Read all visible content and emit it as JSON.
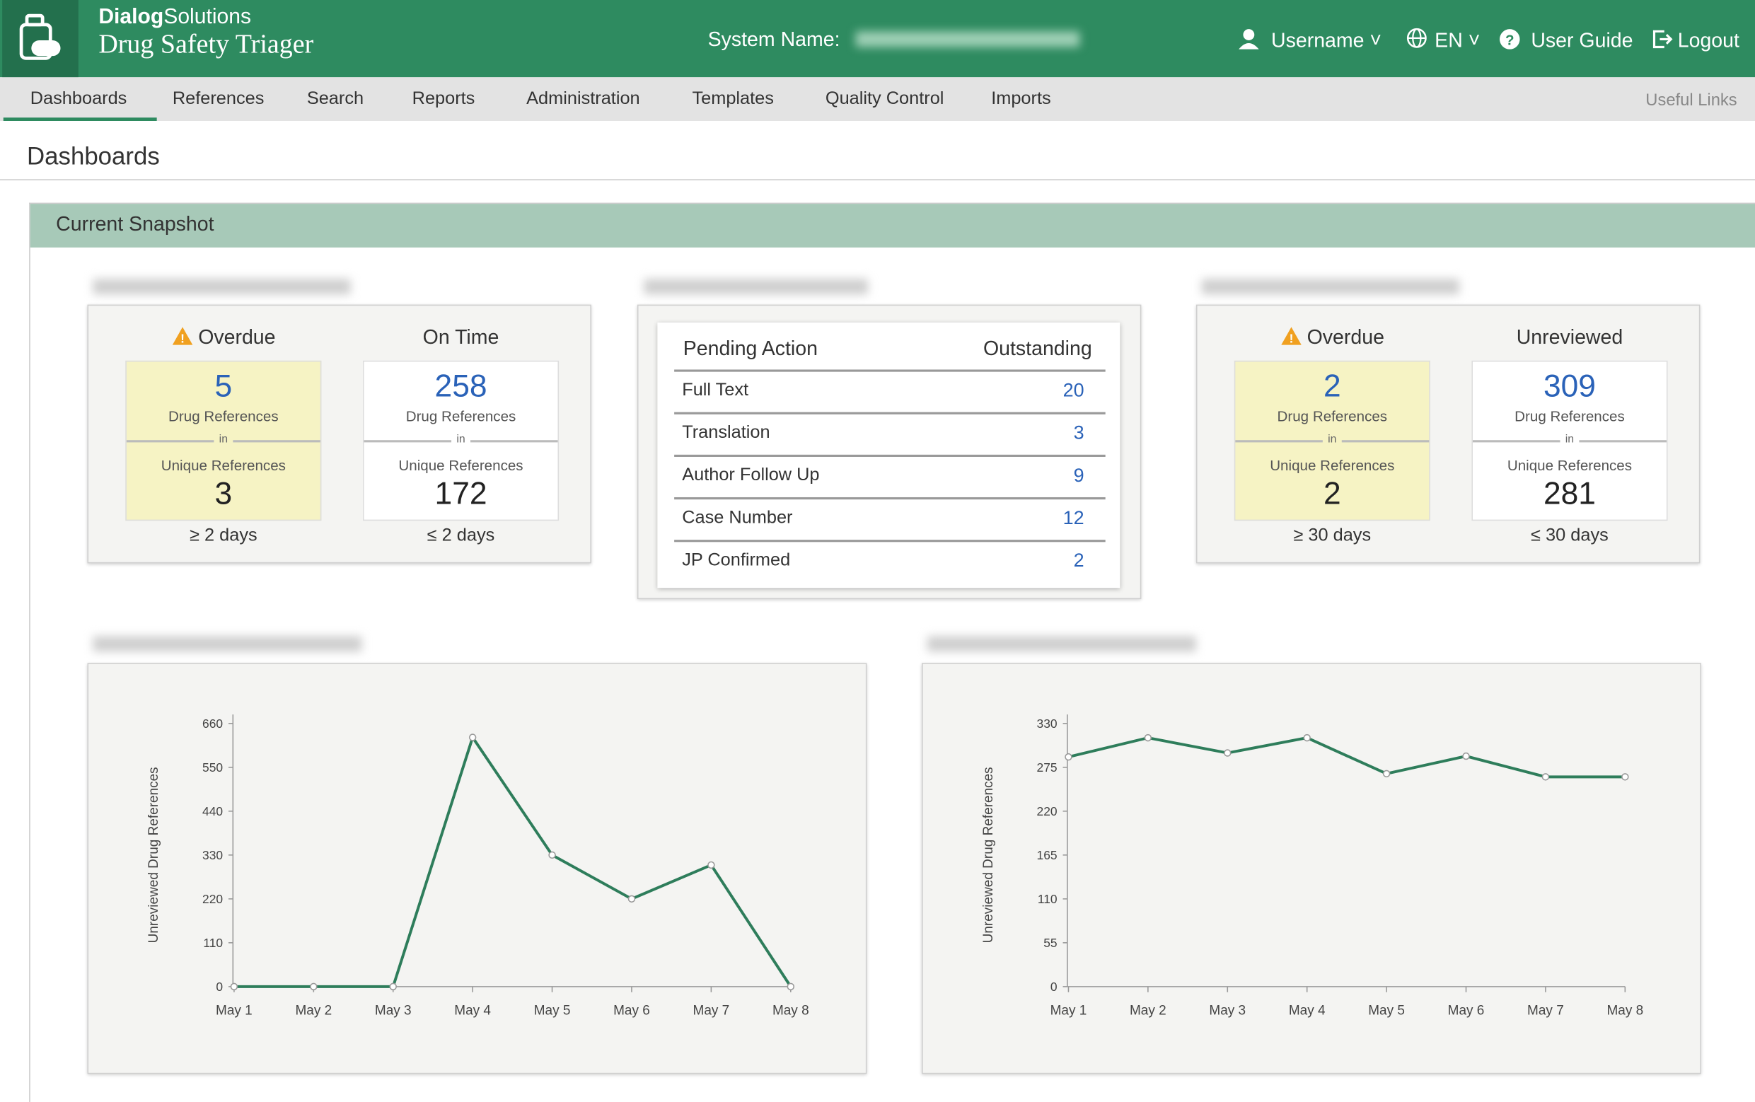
{
  "header": {
    "brand_bold": "Dialog",
    "brand_light": "Solutions",
    "app_title": "Drug Safety Triager",
    "system_name_label": "System Name:",
    "username": "Username",
    "language": "EN",
    "user_guide": "User Guide",
    "logout": "Logout"
  },
  "nav": {
    "tabs": [
      "Dashboards",
      "References",
      "Search",
      "Reports",
      "Administration",
      "Templates",
      "Quality Control",
      "Imports"
    ],
    "active": 0,
    "useful_links": "Useful Links"
  },
  "page_title": "Dashboards",
  "section_title": "Current Snapshot",
  "snapshot_left": {
    "columns": [
      {
        "heading": "Overdue",
        "highlight": true,
        "drug_references": 5,
        "drug_references_label": "Drug References",
        "in_label": "in",
        "unique_references_label": "Unique References",
        "unique_references": 3,
        "footer": "≥ 2 days"
      },
      {
        "heading": "On Time",
        "highlight": false,
        "drug_references": 258,
        "drug_references_label": "Drug References",
        "in_label": "in",
        "unique_references_label": "Unique References",
        "unique_references": 172,
        "footer": "≤ 2 days"
      }
    ]
  },
  "pending_table": {
    "header": [
      "Pending Action",
      "Outstanding"
    ],
    "rows": [
      [
        "Full Text",
        20
      ],
      [
        "Translation",
        3
      ],
      [
        "Author Follow Up",
        9
      ],
      [
        "Case Number",
        12
      ],
      [
        "JP Confirmed",
        2
      ]
    ]
  },
  "snapshot_right": {
    "columns": [
      {
        "heading": "Overdue",
        "highlight": true,
        "drug_references": 2,
        "drug_references_label": "Drug References",
        "in_label": "in",
        "unique_references_label": "Unique References",
        "unique_references": 2,
        "footer": "≥ 30 days"
      },
      {
        "heading": "Unreviewed",
        "highlight": false,
        "drug_references": 309,
        "drug_references_label": "Drug References",
        "in_label": "in",
        "unique_references_label": "Unique References",
        "unique_references": 281,
        "footer": "≤ 30 days"
      }
    ]
  },
  "chart_data": [
    {
      "type": "line",
      "y_label": "Unreviewed Drug References",
      "categories": [
        "May 1",
        "May 2",
        "May 3",
        "May 4",
        "May 5",
        "May 6",
        "May 7",
        "May 8"
      ],
      "values": [
        0,
        0,
        0,
        625,
        330,
        220,
        305,
        0
      ],
      "color": "#2e7d5b",
      "ylim": [
        0,
        660
      ],
      "yticks": [
        0,
        110,
        220,
        330,
        440,
        550,
        660
      ]
    },
    {
      "type": "line",
      "y_label": "Unreviewed Drug References",
      "categories": [
        "May 1",
        "May 2",
        "May 3",
        "May 4",
        "May 5",
        "May 6",
        "May 7",
        "May 8"
      ],
      "values": [
        288,
        312,
        293,
        312,
        267,
        289,
        263,
        263
      ],
      "color": "#2e7d5b",
      "ylim": [
        0,
        330
      ],
      "yticks": [
        0,
        55,
        110,
        165,
        220,
        275,
        330
      ]
    }
  ]
}
